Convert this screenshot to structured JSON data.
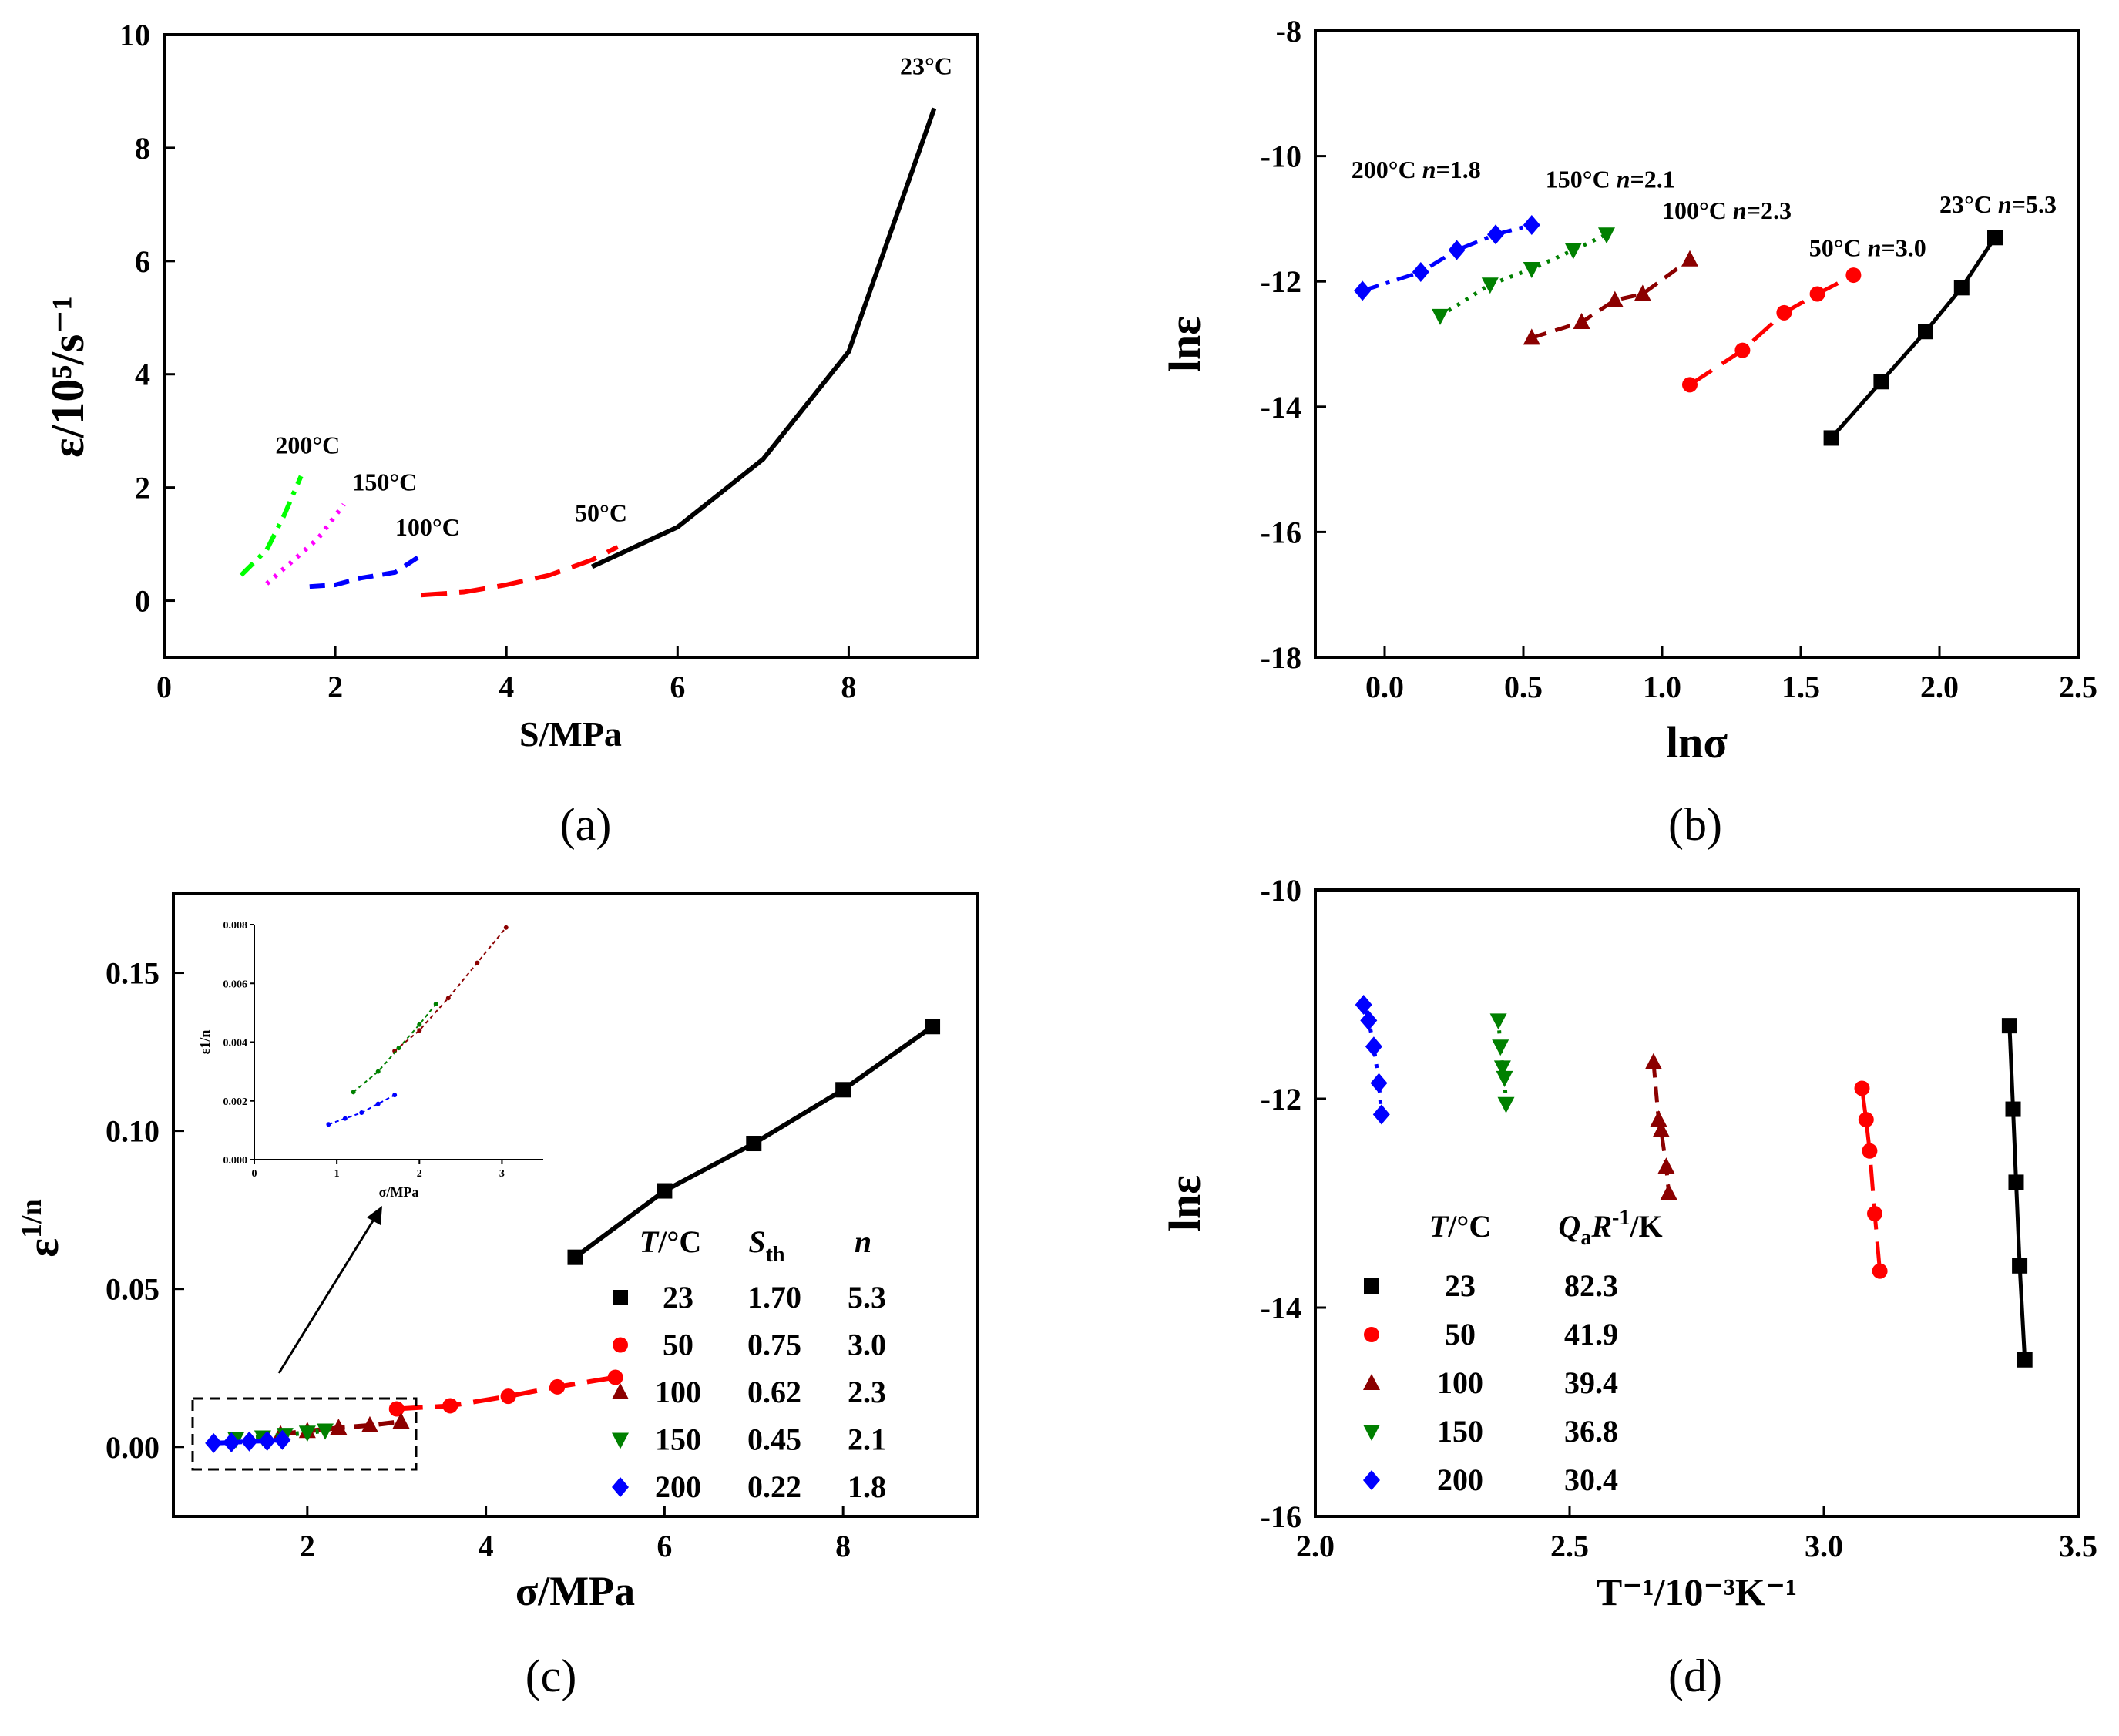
{
  "chart_data": [
    {
      "id": "a",
      "type": "line",
      "caption": "(a)",
      "xlabel": "S/MPa",
      "ylabel": "ε/10⁵/s⁻¹",
      "xlim": [
        0,
        9.5
      ],
      "ylim": [
        -1,
        10
      ],
      "xticks": [
        "0",
        "2",
        "4",
        "6",
        "8"
      ],
      "yticks": [
        "0",
        "2",
        "4",
        "6",
        "8",
        "10"
      ],
      "series": [
        {
          "name": "23°C",
          "color": "#000000",
          "dash": "solid",
          "x": [
            5,
            6,
            7,
            8,
            9
          ],
          "y": [
            0.6,
            1.3,
            2.5,
            4.4,
            8.7
          ],
          "label_at": [
            8.6,
            9.3
          ]
        },
        {
          "name": "50°C",
          "color": "#ff0000",
          "dash": "longdash",
          "x": [
            3,
            3.5,
            4,
            4.5,
            5,
            5.3
          ],
          "y": [
            0.1,
            0.15,
            0.28,
            0.45,
            0.72,
            0.95
          ],
          "label_at": [
            4.8,
            1.4
          ]
        },
        {
          "name": "100°C",
          "color": "#0000ff",
          "dash": "dash",
          "x": [
            1.7,
            2.0,
            2.3,
            2.7,
            3.0
          ],
          "y": [
            0.25,
            0.28,
            0.4,
            0.5,
            0.8
          ],
          "label_at": [
            2.7,
            1.15
          ]
        },
        {
          "name": "150°C",
          "color": "#ff00ff",
          "dash": "dot",
          "x": [
            1.2,
            1.5,
            1.8,
            2.1
          ],
          "y": [
            0.3,
            0.7,
            1.1,
            1.7
          ],
          "label_at": [
            2.2,
            1.95
          ]
        },
        {
          "name": "200°C",
          "color": "#00ff00",
          "dash": "dashdot",
          "x": [
            0.9,
            1.2,
            1.4,
            1.6
          ],
          "y": [
            0.45,
            0.9,
            1.5,
            2.2
          ],
          "label_at": [
            1.3,
            2.6
          ]
        }
      ]
    },
    {
      "id": "b",
      "type": "line",
      "caption": "(b)",
      "xlabel": "lnσ",
      "ylabel": "lnε",
      "xlim": [
        -0.25,
        2.5
      ],
      "ylim": [
        -18,
        -8
      ],
      "xticks": [
        "0.0",
        "0.5",
        "1.0",
        "1.5",
        "2.0",
        "2.5"
      ],
      "yticks": [
        "-8",
        "-10",
        "-12",
        "-14",
        "-16",
        "-18"
      ],
      "series": [
        {
          "name": "23°C",
          "n": "5.3",
          "color": "#000000",
          "dash": "solid",
          "marker": "square",
          "x": [
            1.61,
            1.79,
            1.95,
            2.08,
            2.2
          ],
          "y": [
            -14.5,
            -13.6,
            -12.8,
            -12.1,
            -11.3
          ],
          "label_at": [
            2.0,
            -10.9
          ]
        },
        {
          "name": "50°C",
          "n": "3.0",
          "color": "#ff0000",
          "dash": "longdash",
          "marker": "circle",
          "x": [
            1.1,
            1.29,
            1.44,
            1.56,
            1.69
          ],
          "y": [
            -13.65,
            -13.1,
            -12.5,
            -12.2,
            -11.9
          ],
          "label_at": [
            1.53,
            -11.6
          ]
        },
        {
          "name": "100°C",
          "n": "2.3",
          "color": "#8b0000",
          "dash": "dash",
          "marker": "triangle-up",
          "x": [
            0.53,
            0.71,
            0.83,
            0.93,
            1.1
          ],
          "y": [
            -12.9,
            -12.65,
            -12.3,
            -12.2,
            -11.65
          ],
          "label_at": [
            1.0,
            -11.0
          ]
        },
        {
          "name": "150°C",
          "n": "2.1",
          "color": "#008000",
          "dash": "dot",
          "marker": "triangle-down",
          "x": [
            0.2,
            0.38,
            0.53,
            0.68,
            0.8
          ],
          "y": [
            -12.55,
            -12.05,
            -11.8,
            -11.5,
            -11.25
          ],
          "label_at": [
            0.58,
            -10.5
          ]
        },
        {
          "name": "200°C",
          "n": "1.8",
          "color": "#0000ff",
          "dash": "dashdot",
          "marker": "diamond",
          "x": [
            -0.08,
            0.13,
            0.26,
            0.4,
            0.53
          ],
          "y": [
            -12.15,
            -11.85,
            -11.5,
            -11.25,
            -11.1
          ],
          "label_at": [
            -0.12,
            -10.35
          ]
        }
      ]
    },
    {
      "id": "c",
      "type": "line",
      "caption": "(c)",
      "xlabel": "σ/MPa",
      "ylabel": "ε",
      "ylabel_sup": "1/n",
      "xlim": [
        0.5,
        9.5
      ],
      "ylim": [
        -0.022,
        0.175
      ],
      "xticks": [
        "2",
        "4",
        "6",
        "8"
      ],
      "yticks": [
        "0.00",
        "0.05",
        "0.10",
        "0.15"
      ],
      "series": [
        {
          "name": "23",
          "color": "#000000",
          "dash": "solid",
          "marker": "square",
          "x": [
            5,
            6,
            7,
            8,
            9
          ],
          "y": [
            0.06,
            0.081,
            0.096,
            0.113,
            0.133
          ]
        },
        {
          "name": "50",
          "color": "#ff0000",
          "dash": "longdash",
          "marker": "circle",
          "x": [
            3,
            3.6,
            4.25,
            4.8,
            5.45
          ],
          "y": [
            0.012,
            0.013,
            0.016,
            0.019,
            0.022
          ]
        },
        {
          "name": "100",
          "color": "#8b0000",
          "dash": "dash",
          "marker": "triangle-up",
          "x": [
            1.7,
            2.0,
            2.35,
            2.7,
            3.05
          ],
          "y": [
            0.004,
            0.005,
            0.006,
            0.0068,
            0.008
          ]
        },
        {
          "name": "150",
          "color": "#008000",
          "dash": "dot",
          "marker": "triangle-down",
          "x": [
            1.2,
            1.5,
            1.75,
            2.0,
            2.2
          ],
          "y": [
            0.0025,
            0.003,
            0.0038,
            0.0045,
            0.0052
          ]
        },
        {
          "name": "200",
          "color": "#0000ff",
          "dash": "dashdot",
          "marker": "diamond",
          "x": [
            0.95,
            1.15,
            1.35,
            1.55,
            1.72
          ],
          "y": [
            0.0012,
            0.0014,
            0.0017,
            0.0019,
            0.0022
          ]
        }
      ],
      "legend": {
        "position": "bottom-right",
        "headers": [
          "T/°C",
          "Sth",
          "n"
        ],
        "rows": [
          {
            "T": "23",
            "S": "1.70",
            "n": "5.3"
          },
          {
            "T": "50",
            "S": "0.75",
            "n": "3.0"
          },
          {
            "T": "100",
            "S": "0.62",
            "n": "2.3"
          },
          {
            "T": "150",
            "S": "0.45",
            "n": "2.1"
          },
          {
            "T": "200",
            "S": "0.22",
            "n": "1.8"
          }
        ]
      },
      "inset": {
        "xlabel": "σ/MPa",
        "ylabel": "ε1/n",
        "xlim": [
          0,
          3.5
        ],
        "ylim": [
          0,
          0.008
        ],
        "xticks": [
          "0",
          "1",
          "2",
          "3"
        ],
        "yticks": [
          "0.000",
          "0.002",
          "0.004",
          "0.006",
          "0.008"
        ],
        "series": [
          {
            "name": "100",
            "color": "#8b0000",
            "x": [
              1.7,
              2.0,
              2.35,
              2.7,
              3.05
            ],
            "y": [
              0.0037,
              0.0044,
              0.0055,
              0.0067,
              0.0079
            ]
          },
          {
            "name": "150",
            "color": "#008000",
            "x": [
              1.2,
              1.5,
              1.75,
              2.0,
              2.2
            ],
            "y": [
              0.0023,
              0.003,
              0.0038,
              0.0046,
              0.0053
            ]
          },
          {
            "name": "200",
            "color": "#0000ff",
            "x": [
              0.9,
              1.1,
              1.3,
              1.5,
              1.7
            ],
            "y": [
              0.0012,
              0.0014,
              0.0016,
              0.0019,
              0.0022
            ]
          }
        ]
      }
    },
    {
      "id": "d",
      "type": "line",
      "caption": "(d)",
      "xlabel": "T⁻¹/10⁻³K⁻¹",
      "ylabel": "lnε",
      "xlim": [
        2.0,
        3.5
      ],
      "ylim": [
        -16,
        -10
      ],
      "xticks": [
        "2.0",
        "2.5",
        "3.0",
        "3.5"
      ],
      "yticks": [
        "-10",
        "-12",
        "-14",
        "-16"
      ],
      "series": [
        {
          "name": "23",
          "color": "#000000",
          "dash": "solid",
          "marker": "square",
          "x": [
            3.365,
            3.372,
            3.378,
            3.385,
            3.395
          ],
          "y": [
            -11.3,
            -12.1,
            -12.8,
            -13.6,
            -14.5
          ]
        },
        {
          "name": "50",
          "color": "#ff0000",
          "dash": "longdash",
          "marker": "circle",
          "x": [
            3.075,
            3.083,
            3.09,
            3.1,
            3.11
          ],
          "y": [
            -11.9,
            -12.2,
            -12.5,
            -13.1,
            -13.65
          ]
        },
        {
          "name": "100",
          "color": "#8b0000",
          "dash": "dash",
          "marker": "triangle-up",
          "x": [
            2.665,
            2.675,
            2.68,
            2.69,
            2.695
          ],
          "y": [
            -11.65,
            -12.2,
            -12.3,
            -12.65,
            -12.9
          ]
        },
        {
          "name": "150",
          "color": "#008000",
          "dash": "dot",
          "marker": "triangle-down",
          "x": [
            2.36,
            2.364,
            2.368,
            2.372,
            2.375
          ],
          "y": [
            -11.25,
            -11.5,
            -11.7,
            -11.8,
            -12.05
          ]
        },
        {
          "name": "200",
          "color": "#0000ff",
          "dash": "dashdot",
          "marker": "diamond",
          "x": [
            2.095,
            2.105,
            2.115,
            2.125,
            2.13
          ],
          "y": [
            -11.1,
            -11.25,
            -11.5,
            -11.85,
            -12.15
          ]
        }
      ],
      "legend": {
        "position": "bottom-center",
        "headers": [
          "T/°C",
          "QaR-1/K"
        ],
        "rows": [
          {
            "T": "23",
            "Q": "82.3"
          },
          {
            "T": "50",
            "Q": "41.9"
          },
          {
            "T": "100",
            "Q": "39.4"
          },
          {
            "T": "150",
            "Q": "36.8"
          },
          {
            "T": "200",
            "Q": "30.4"
          }
        ]
      }
    }
  ]
}
